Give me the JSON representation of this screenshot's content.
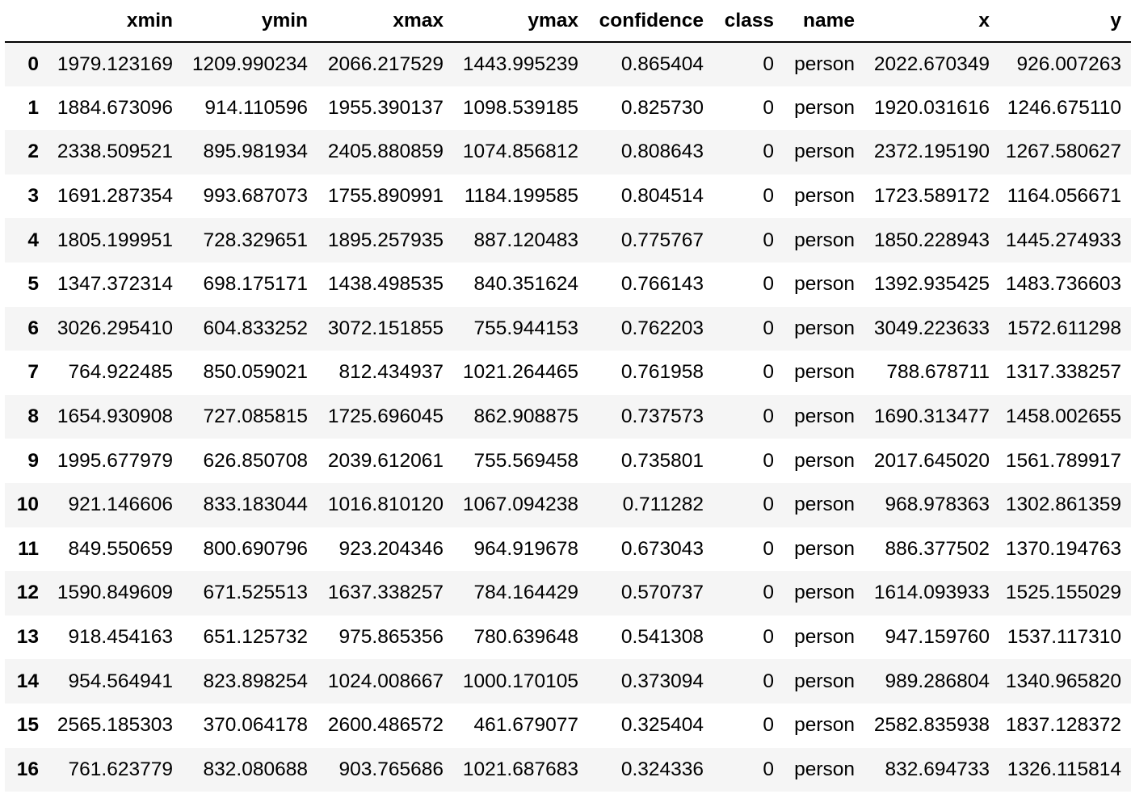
{
  "table": {
    "columns": [
      "",
      "xmin",
      "ymin",
      "xmax",
      "ymax",
      "confidence",
      "class",
      "name",
      "x",
      "y"
    ],
    "rows": [
      [
        "0",
        "1979.123169",
        "1209.990234",
        "2066.217529",
        "1443.995239",
        "0.865404",
        "0",
        "person",
        "2022.670349",
        "926.007263"
      ],
      [
        "1",
        "1884.673096",
        "914.110596",
        "1955.390137",
        "1098.539185",
        "0.825730",
        "0",
        "person",
        "1920.031616",
        "1246.675110"
      ],
      [
        "2",
        "2338.509521",
        "895.981934",
        "2405.880859",
        "1074.856812",
        "0.808643",
        "0",
        "person",
        "2372.195190",
        "1267.580627"
      ],
      [
        "3",
        "1691.287354",
        "993.687073",
        "1755.890991",
        "1184.199585",
        "0.804514",
        "0",
        "person",
        "1723.589172",
        "1164.056671"
      ],
      [
        "4",
        "1805.199951",
        "728.329651",
        "1895.257935",
        "887.120483",
        "0.775767",
        "0",
        "person",
        "1850.228943",
        "1445.274933"
      ],
      [
        "5",
        "1347.372314",
        "698.175171",
        "1438.498535",
        "840.351624",
        "0.766143",
        "0",
        "person",
        "1392.935425",
        "1483.736603"
      ],
      [
        "6",
        "3026.295410",
        "604.833252",
        "3072.151855",
        "755.944153",
        "0.762203",
        "0",
        "person",
        "3049.223633",
        "1572.611298"
      ],
      [
        "7",
        "764.922485",
        "850.059021",
        "812.434937",
        "1021.264465",
        "0.761958",
        "0",
        "person",
        "788.678711",
        "1317.338257"
      ],
      [
        "8",
        "1654.930908",
        "727.085815",
        "1725.696045",
        "862.908875",
        "0.737573",
        "0",
        "person",
        "1690.313477",
        "1458.002655"
      ],
      [
        "9",
        "1995.677979",
        "626.850708",
        "2039.612061",
        "755.569458",
        "0.735801",
        "0",
        "person",
        "2017.645020",
        "1561.789917"
      ],
      [
        "10",
        "921.146606",
        "833.183044",
        "1016.810120",
        "1067.094238",
        "0.711282",
        "0",
        "person",
        "968.978363",
        "1302.861359"
      ],
      [
        "11",
        "849.550659",
        "800.690796",
        "923.204346",
        "964.919678",
        "0.673043",
        "0",
        "person",
        "886.377502",
        "1370.194763"
      ],
      [
        "12",
        "1590.849609",
        "671.525513",
        "1637.338257",
        "784.164429",
        "0.570737",
        "0",
        "person",
        "1614.093933",
        "1525.155029"
      ],
      [
        "13",
        "918.454163",
        "651.125732",
        "975.865356",
        "780.639648",
        "0.541308",
        "0",
        "person",
        "947.159760",
        "1537.117310"
      ],
      [
        "14",
        "954.564941",
        "823.898254",
        "1024.008667",
        "1000.170105",
        "0.373094",
        "0",
        "person",
        "989.286804",
        "1340.965820"
      ],
      [
        "15",
        "2565.185303",
        "370.064178",
        "2600.486572",
        "461.679077",
        "0.325404",
        "0",
        "person",
        "2582.835938",
        "1837.128372"
      ],
      [
        "16",
        "761.623779",
        "832.080688",
        "903.765686",
        "1021.687683",
        "0.324336",
        "0",
        "person",
        "832.694733",
        "1326.115814"
      ]
    ]
  }
}
